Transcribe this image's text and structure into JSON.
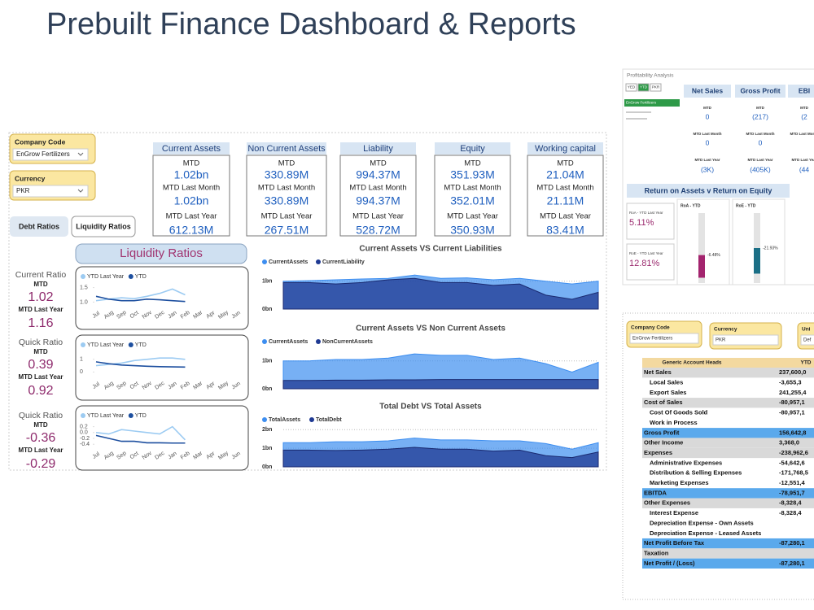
{
  "title": "Prebuilt Finance Dashboard & Reports",
  "dashboard": {
    "filters": [
      {
        "label": "Company Code",
        "value": "EnGrow Fertilizers"
      },
      {
        "label": "Currency",
        "value": "PKR"
      }
    ],
    "tabs": [
      "Debt Ratios",
      "Liquidity Ratios"
    ],
    "cards": [
      {
        "title": "Current Assets",
        "rows": [
          {
            "label": "MTD",
            "value": "1.02bn"
          },
          {
            "label": "MTD Last Month",
            "value": "1.02bn"
          },
          {
            "label": "MTD Last Year",
            "value": "612.13M"
          }
        ]
      },
      {
        "title": "Non Current Assets",
        "rows": [
          {
            "label": "MTD",
            "value": "330.89M"
          },
          {
            "label": "MTD Last Month",
            "value": "330.89M"
          },
          {
            "label": "MTD Last Year",
            "value": "267.51M"
          }
        ]
      },
      {
        "title": "Liability",
        "rows": [
          {
            "label": "MTD",
            "value": "994.37M"
          },
          {
            "label": "MTD Last Month",
            "value": "994.37M"
          },
          {
            "label": "MTD Last Year",
            "value": "528.72M"
          }
        ]
      },
      {
        "title": "Equity",
        "rows": [
          {
            "label": "MTD",
            "value": "351.93M"
          },
          {
            "label": "MTD Last Month",
            "value": "352.01M"
          },
          {
            "label": "MTD Last Year",
            "value": "350.93M"
          }
        ]
      },
      {
        "title": "Working capital",
        "rows": [
          {
            "label": "MTD",
            "value": "21.04M"
          },
          {
            "label": "MTD Last Month",
            "value": "21.11M"
          },
          {
            "label": "MTD Last Year",
            "value": "83.41M"
          }
        ]
      }
    ],
    "section_title": "Liquidity Ratios",
    "ratios": [
      {
        "name": "Current Ratio",
        "mtd_label": "MTD",
        "mtd": 1.02,
        "last_year_label": "MTD Last Year",
        "last_year": 1.16,
        "chart": {
          "type": "line",
          "categories": [
            "Jul",
            "Aug",
            "Sep",
            "Oct",
            "Nov",
            "Dec",
            "Jan",
            "Feb",
            "Mar",
            "Apr",
            "May",
            "Jun"
          ],
          "series": [
            {
              "name": "YTD Last Year",
              "color": "#9ccbf2",
              "values": [
                1.05,
                1.1,
                1.15,
                1.12,
                1.2,
                1.3,
                1.45,
                1.25,
                null,
                null,
                null,
                null
              ]
            },
            {
              "name": "YTD",
              "color": "#1d4f9f",
              "values": [
                1.2,
                1.1,
                1.05,
                1.05,
                1.1,
                1.08,
                1.05,
                1.02,
                null,
                null,
                null,
                null
              ]
            }
          ],
          "ylim": [
            0.9,
            1.6
          ],
          "yticks": [
            {
              "value": 1,
              "label": "1.0"
            },
            1.5
          ]
        }
      },
      {
        "name": "Quick Ratio",
        "mtd_label": "MTD",
        "mtd": 0.39,
        "last_year_label": "MTD Last Year",
        "last_year": 0.92,
        "chart": {
          "type": "line",
          "categories": [
            "Jul",
            "Aug",
            "Sep",
            "Oct",
            "Nov",
            "Dec",
            "Jan",
            "Feb",
            "Mar",
            "Apr",
            "May",
            "Jun"
          ],
          "series": [
            {
              "name": "YTD Last Year",
              "color": "#9ccbf2",
              "values": [
                0.5,
                0.6,
                0.7,
                0.9,
                1.0,
                1.1,
                1.1,
                1.0,
                null,
                null,
                null,
                null
              ]
            },
            {
              "name": "YTD",
              "color": "#1d4f9f",
              "values": [
                0.8,
                0.65,
                0.55,
                0.5,
                0.45,
                0.42,
                0.4,
                0.39,
                null,
                null,
                null,
                null
              ]
            }
          ],
          "ylim": [
            -0.3,
            1.5
          ],
          "yticks": [
            0,
            1
          ]
        }
      },
      {
        "name": "Quick Ratio",
        "mtd_label": "MTD",
        "mtd": -0.36,
        "last_year_label": "MTD Last Year",
        "last_year": -0.29,
        "chart": {
          "type": "line",
          "categories": [
            "Jul",
            "Aug",
            "Sep",
            "Oct",
            "Nov",
            "Dec",
            "Jan",
            "Feb",
            "Mar",
            "Apr",
            "May",
            "Jun"
          ],
          "series": [
            {
              "name": "YTD Last Year",
              "color": "#9ccbf2",
              "values": [
                0.0,
                -0.05,
                0.1,
                0.05,
                0.0,
                -0.05,
                0.2,
                -0.25,
                null,
                null,
                null,
                null
              ]
            },
            {
              "name": "YTD",
              "color": "#1d4f9f",
              "values": [
                -0.1,
                -0.2,
                -0.3,
                -0.3,
                -0.35,
                -0.35,
                -0.36,
                -0.36,
                null,
                null,
                null,
                null
              ]
            }
          ],
          "ylim": [
            -0.45,
            0.3
          ],
          "yticks": [
            0.2,
            {
              "value": 0,
              "label": "0.0"
            },
            -0.2,
            -0.4
          ]
        }
      }
    ],
    "area_charts": [
      {
        "type": "area",
        "title": "Current Assets VS Current Liabilities",
        "grid": true,
        "ylim": [
          0,
          1.4
        ],
        "yticks": [
          {
            "value": 0,
            "label": "0bn"
          },
          {
            "value": 1,
            "label": "1bn"
          }
        ],
        "series": [
          {
            "name": "CurrentAssets",
            "color": "#3d8ef0",
            "values": [
              1.0,
              1.02,
              1.05,
              1.08,
              1.1,
              1.22,
              1.1,
              1.12,
              1.05,
              1.1,
              1.0,
              0.9,
              1.0
            ]
          },
          {
            "name": "CurrentLiability",
            "color": "#1f3a93",
            "values": [
              0.95,
              0.95,
              0.9,
              0.95,
              1.05,
              1.1,
              0.95,
              0.95,
              0.85,
              0.9,
              0.5,
              0.35,
              0.6
            ]
          }
        ]
      },
      {
        "type": "area",
        "title": "Current Assets VS Non Current Assets",
        "grid": true,
        "ylim": [
          0,
          1.4
        ],
        "yticks": [
          {
            "value": 0,
            "label": "0bn"
          },
          {
            "value": 1,
            "label": "1bn"
          }
        ],
        "series": [
          {
            "name": "CurrentAssets",
            "color": "#3d8ef0",
            "values": [
              1.0,
              1.0,
              1.05,
              1.05,
              1.1,
              1.25,
              1.2,
              1.2,
              1.05,
              1.1,
              0.9,
              0.6,
              0.95
            ]
          },
          {
            "name": "NonCurrentAssets",
            "color": "#1f3a93",
            "values": [
              0.3,
              0.3,
              0.31,
              0.31,
              0.32,
              0.32,
              0.33,
              0.33,
              0.33,
              0.33,
              0.33,
              0.33,
              0.33
            ]
          }
        ]
      },
      {
        "type": "area",
        "title": "Total Debt VS Total Assets",
        "grid": true,
        "ylim": [
          0,
          2.1
        ],
        "yticks": [
          {
            "value": 0,
            "label": "0bn"
          },
          {
            "value": 1,
            "label": "1bn"
          },
          {
            "value": 2,
            "label": "2bn"
          }
        ],
        "series": [
          {
            "name": "TotalAssets",
            "color": "#3d8ef0",
            "values": [
              1.3,
              1.3,
              1.35,
              1.35,
              1.4,
              1.55,
              1.45,
              1.45,
              1.4,
              1.4,
              1.25,
              0.95,
              1.3
            ]
          },
          {
            "name": "TotalDebt",
            "color": "#1f3a93",
            "values": [
              0.9,
              0.9,
              0.88,
              0.9,
              0.95,
              1.05,
              0.95,
              0.95,
              0.85,
              0.9,
              0.6,
              0.5,
              0.8
            ]
          }
        ]
      }
    ]
  },
  "profitability": {
    "title": "Profitability Analysis",
    "toggles": [
      "YED",
      "YTD",
      "PKR"
    ],
    "companies": [
      "EnGrow Fertilizers"
    ],
    "row_labels": [
      "MTD",
      "MTD Last Month",
      "MTD Last Year"
    ],
    "columns": [
      {
        "title": "Net Sales",
        "values": [
          "0",
          "0",
          "(3K)"
        ]
      },
      {
        "title": "Gross Profit",
        "values": [
          "(217)",
          "0",
          "(405K)"
        ]
      },
      {
        "title": "EBI",
        "values": [
          "(2",
          null,
          "(44"
        ]
      }
    ],
    "returns_title": "Return on Assets v Return on Equity",
    "kpis": [
      {
        "label": "RoA - YTD Last Year",
        "value": "5.11%"
      },
      {
        "label": "RoE - YTD Last Year",
        "value": "12.81%"
      }
    ],
    "gauges": [
      {
        "title": "RoA - YTD",
        "value": -6.48,
        "value_label": "-6.48%",
        "color": "#a3246e",
        "ylim": [
          -8,
          12
        ]
      },
      {
        "title": "RoE - YTD",
        "value": -21.93,
        "value_label": "-21.93%",
        "color": "#1b6f86",
        "ylim": [
          -30,
          30
        ]
      }
    ]
  },
  "report": {
    "filters": [
      {
        "label": "Company Code",
        "value": "EnGrow Fertilizers"
      },
      {
        "label": "Currency",
        "value": "PKR"
      },
      {
        "label": "Uni",
        "value": "Def"
      }
    ],
    "columns": [
      "Generic Account Heads",
      "YTD"
    ],
    "rows": [
      {
        "label": "Net Sales",
        "value": "237,600,0",
        "style": "group"
      },
      {
        "label": "Local Sales",
        "value": "-3,655,3",
        "style": "item"
      },
      {
        "label": "Export Sales",
        "value": "241,255,4",
        "style": "item"
      },
      {
        "label": "Cost of Sales",
        "value": "-80,957,1",
        "style": "group"
      },
      {
        "label": "Cost Of Goods Sold",
        "value": "-80,957,1",
        "style": "item"
      },
      {
        "label": "Work in Process",
        "value": null,
        "style": "item"
      },
      {
        "label": "Gross Profit",
        "value": "156,642,8",
        "style": "total"
      },
      {
        "label": "Other Income",
        "value": "3,368,0",
        "style": "group"
      },
      {
        "label": "Expenses",
        "value": "-238,962,6",
        "style": "group"
      },
      {
        "label": "Administrative Expenses",
        "value": "-54,642,6",
        "style": "item"
      },
      {
        "label": "Distribution & Selling Expenses",
        "value": "-171,768,5",
        "style": "item"
      },
      {
        "label": "Marketing Expenses",
        "value": "-12,551,4",
        "style": "item"
      },
      {
        "label": "EBITDA",
        "value": "-78,951,7",
        "style": "total"
      },
      {
        "label": "Other Expenses",
        "value": "-8,328,4",
        "style": "group"
      },
      {
        "label": "Interest Expense",
        "value": "-8,328,4",
        "style": "item"
      },
      {
        "label": "Depreciation Expense - Own Assets",
        "value": null,
        "style": "item"
      },
      {
        "label": "Depreciation Expense - Leased Assets",
        "value": null,
        "style": "item"
      },
      {
        "label": "Net Profit Before Tax",
        "value": "-87,280,1",
        "style": "total"
      },
      {
        "label": "Taxation",
        "value": null,
        "style": "group"
      },
      {
        "label": "Net Profit / (Loss)",
        "value": "-87,280,1",
        "style": "total"
      }
    ]
  }
}
